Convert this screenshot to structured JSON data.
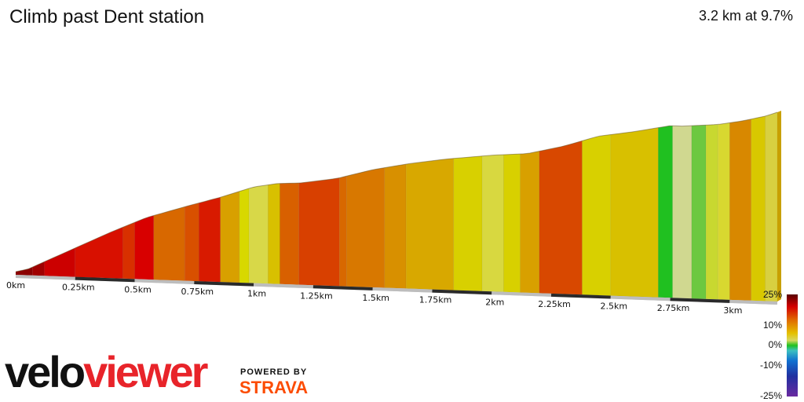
{
  "header": {
    "title": "Climb past Dent station",
    "summary": "3.2 km at 9.7%"
  },
  "chart_data": {
    "type": "area",
    "title": "Climb past Dent station",
    "distance_km": 3.2,
    "avg_gradient_pct": 9.7,
    "x_ticks": [
      "0km",
      "0.25km",
      "0.5km",
      "0.75km",
      "1km",
      "1.25km",
      "1.5km",
      "1.75km",
      "2km",
      "2.25km",
      "2.5km",
      "2.75km",
      "3km"
    ],
    "elevation_profile": [
      [
        0,
        0
      ],
      [
        0.05,
        2
      ],
      [
        0.2,
        14
      ],
      [
        0.4,
        30
      ],
      [
        0.55,
        41
      ],
      [
        0.72,
        50
      ],
      [
        0.86,
        57
      ],
      [
        1.0,
        65
      ],
      [
        1.1,
        68
      ],
      [
        1.2,
        69
      ],
      [
        1.35,
        73
      ],
      [
        1.5,
        80
      ],
      [
        1.65,
        85
      ],
      [
        1.8,
        89
      ],
      [
        2.0,
        93
      ],
      [
        2.15,
        95
      ],
      [
        2.3,
        101
      ],
      [
        2.45,
        109
      ],
      [
        2.6,
        113
      ],
      [
        2.75,
        118
      ],
      [
        2.8,
        118
      ],
      [
        2.95,
        120
      ],
      [
        3.05,
        123
      ],
      [
        3.15,
        127
      ],
      [
        3.2,
        130
      ]
    ],
    "gradient_segments": [
      {
        "from": 0.0,
        "to": 0.07,
        "color": "#8b0000"
      },
      {
        "from": 0.07,
        "to": 0.12,
        "color": "#a00000"
      },
      {
        "from": 0.12,
        "to": 0.25,
        "color": "#cc0000"
      },
      {
        "from": 0.25,
        "to": 0.45,
        "color": "#d81000"
      },
      {
        "from": 0.45,
        "to": 0.5,
        "color": "#d83000"
      },
      {
        "from": 0.5,
        "to": 0.58,
        "color": "#d80000"
      },
      {
        "from": 0.58,
        "to": 0.71,
        "color": "#d86800"
      },
      {
        "from": 0.71,
        "to": 0.77,
        "color": "#d85000"
      },
      {
        "from": 0.77,
        "to": 0.86,
        "color": "#d81a00"
      },
      {
        "from": 0.86,
        "to": 0.94,
        "color": "#d8a000"
      },
      {
        "from": 0.94,
        "to": 0.98,
        "color": "#d8d800"
      },
      {
        "from": 0.98,
        "to": 1.06,
        "color": "#d8d848"
      },
      {
        "from": 1.06,
        "to": 1.11,
        "color": "#d8c000"
      },
      {
        "from": 1.11,
        "to": 1.19,
        "color": "#d86000"
      },
      {
        "from": 1.19,
        "to": 1.36,
        "color": "#d84000"
      },
      {
        "from": 1.36,
        "to": 1.39,
        "color": "#d86800"
      },
      {
        "from": 1.39,
        "to": 1.55,
        "color": "#d87800"
      },
      {
        "from": 1.55,
        "to": 1.64,
        "color": "#d89000"
      },
      {
        "from": 1.64,
        "to": 1.84,
        "color": "#d8a800"
      },
      {
        "from": 1.84,
        "to": 1.96,
        "color": "#d8d000"
      },
      {
        "from": 1.96,
        "to": 2.05,
        "color": "#d8d840"
      },
      {
        "from": 2.05,
        "to": 2.12,
        "color": "#d8d000"
      },
      {
        "from": 2.12,
        "to": 2.2,
        "color": "#d8a000"
      },
      {
        "from": 2.2,
        "to": 2.38,
        "color": "#d84800"
      },
      {
        "from": 2.38,
        "to": 2.5,
        "color": "#d8d000"
      },
      {
        "from": 2.5,
        "to": 2.7,
        "color": "#d8c000"
      },
      {
        "from": 2.7,
        "to": 2.76,
        "color": "#20c020"
      },
      {
        "from": 2.76,
        "to": 2.84,
        "color": "#d0d890"
      },
      {
        "from": 2.84,
        "to": 2.9,
        "color": "#6cc840"
      },
      {
        "from": 2.9,
        "to": 2.95,
        "color": "#c8d830"
      },
      {
        "from": 2.95,
        "to": 3.0,
        "color": "#d8d830"
      },
      {
        "from": 3.0,
        "to": 3.09,
        "color": "#d88800"
      },
      {
        "from": 3.09,
        "to": 3.15,
        "color": "#d8c800"
      },
      {
        "from": 3.15,
        "to": 3.2,
        "color": "#d8d040"
      }
    ]
  },
  "scale": {
    "labels": [
      "25%",
      "10%",
      "0%",
      "-10%",
      "-25%"
    ]
  },
  "branding": {
    "velo": "velo",
    "viewer": "viewer",
    "powered_by": "POWERED BY",
    "strava": "STRAVA"
  }
}
